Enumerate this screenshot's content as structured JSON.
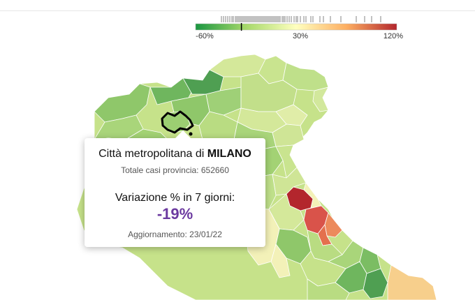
{
  "legend": {
    "min_label": "-60%",
    "mid_label": "30%",
    "max_label": "120%",
    "min_value": -60,
    "max_value": 120,
    "colors": [
      "#1a9641",
      "#a6d96a",
      "#ffffbf",
      "#fdae61",
      "#d7191c"
    ],
    "current_value": -19
  },
  "tooltip": {
    "title_prefix": "Città metropolitana di",
    "title_bold": "MILANO",
    "total_label": "Totale casi provincia:",
    "total_value": "652660",
    "variation_label": "Variazione % in 7 giorni:",
    "variation_value": "-19%",
    "update_label": "Aggiornamento:",
    "update_value": "23/01/22"
  },
  "map": {
    "colors": {
      "dark_green": "#5fa85a",
      "mid_green": "#8fc76a",
      "light_green": "#b9dc82",
      "pale_green": "#d4e89a",
      "pale_yellow": "#f3f1b8",
      "light_orange": "#f7cf8c",
      "orange": "#ec8a5c",
      "red_orange": "#d9534a",
      "dark_red": "#b3262d"
    },
    "highlight": "Milano"
  }
}
